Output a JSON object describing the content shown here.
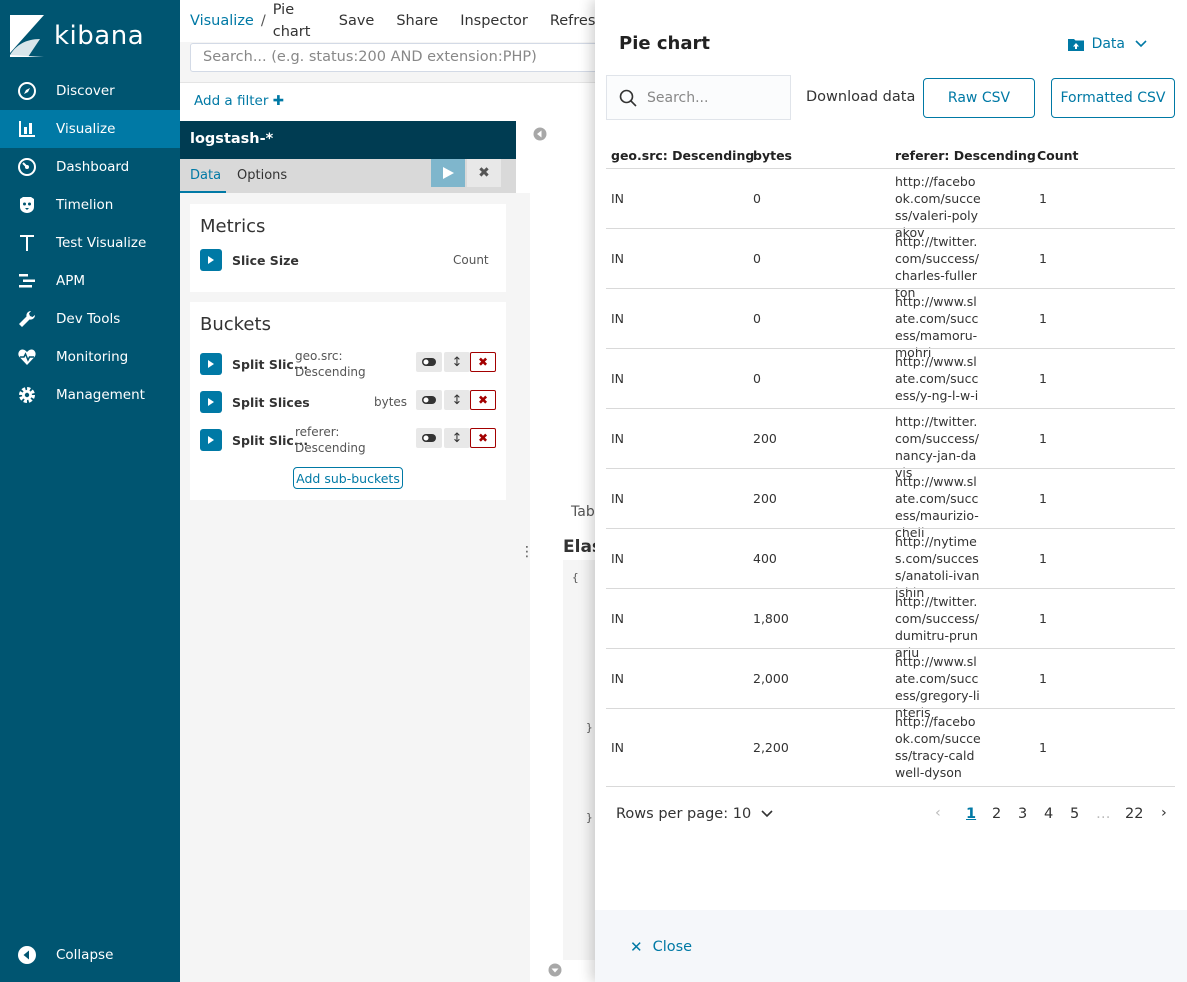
{
  "sidebar": {
    "logo_text": "kibana",
    "items": [
      {
        "label": "Discover",
        "icon": "compass-icon"
      },
      {
        "label": "Visualize",
        "icon": "bar-chart-icon"
      },
      {
        "label": "Dashboard",
        "icon": "dashboard-icon"
      },
      {
        "label": "Timelion",
        "icon": "timelion-icon"
      },
      {
        "label": "Test Visualize",
        "icon": "text-t-icon"
      },
      {
        "label": "APM",
        "icon": "apm-icon"
      },
      {
        "label": "Dev Tools",
        "icon": "wrench-icon"
      },
      {
        "label": "Monitoring",
        "icon": "heartbeat-icon"
      },
      {
        "label": "Management",
        "icon": "gear-icon"
      }
    ],
    "collapse_label": "Collapse"
  },
  "topbar": {
    "breadcrumb_root": "Visualize",
    "breadcrumb_sep": "/",
    "breadcrumb_current": "Pie chart",
    "menu": [
      "Save",
      "Share",
      "Inspector",
      "Refresh"
    ]
  },
  "query": {
    "placeholder": "Search... (e.g. status:200 AND extension:PHP)",
    "add_filter": "Add a filter"
  },
  "editor": {
    "index_pattern": "logstash-*",
    "tabs": [
      "Data",
      "Options"
    ],
    "metrics_title": "Metrics",
    "metric": {
      "label": "Slice Size",
      "desc": "Count"
    },
    "buckets_title": "Buckets",
    "buckets": [
      {
        "label": "Split Slic...",
        "desc": "geo.src: Descending"
      },
      {
        "label": "Split Slices",
        "desc": "bytes"
      },
      {
        "label": "Split Slic...",
        "desc": "referer: Descending"
      }
    ],
    "add_sub_buckets": "Add sub-buckets"
  },
  "viz": {
    "tab_fragment": "Tab",
    "heading_fragment": "Elas"
  },
  "inspector": {
    "title": "Pie chart",
    "view_label": "Data",
    "search_placeholder": "Search...",
    "download_label": "Download data",
    "raw_csv": "Raw CSV",
    "formatted_csv": "Formatted CSV",
    "columns": [
      "geo.src: Descending",
      "bytes",
      "referer: Descending",
      "Count"
    ],
    "rows": [
      {
        "geo": "IN",
        "bytes": "0",
        "referer": "http://facebook.com/success/valeri-polyakov",
        "count": "1"
      },
      {
        "geo": "IN",
        "bytes": "0",
        "referer": "http://twitter.com/success/charles-fullerton",
        "count": "1"
      },
      {
        "geo": "IN",
        "bytes": "0",
        "referer": "http://www.slate.com/success/mamoru-mohri",
        "count": "1"
      },
      {
        "geo": "IN",
        "bytes": "0",
        "referer": "http://www.slate.com/success/y-ng-l-w-i",
        "count": "1"
      },
      {
        "geo": "IN",
        "bytes": "200",
        "referer": "http://twitter.com/success/nancy-jan-davis",
        "count": "1"
      },
      {
        "geo": "IN",
        "bytes": "200",
        "referer": "http://www.slate.com/success/maurizio-cheli",
        "count": "1"
      },
      {
        "geo": "IN",
        "bytes": "400",
        "referer": "http://nytimes.com/success/anatoli-ivanishin",
        "count": "1"
      },
      {
        "geo": "IN",
        "bytes": "1,800",
        "referer": "http://twitter.com/success/dumitru-prunariu",
        "count": "1"
      },
      {
        "geo": "IN",
        "bytes": "2,000",
        "referer": "http://www.slate.com/success/gregory-linteris",
        "count": "1"
      },
      {
        "geo": "IN",
        "bytes": "2,200",
        "referer": "http://facebook.com/success/tracy-caldwell-dyson",
        "count": "1"
      }
    ],
    "rows_per_page": "Rows per page: 10",
    "pages": [
      "1",
      "2",
      "3",
      "4",
      "5",
      "…",
      "22"
    ],
    "active_page": "1",
    "close_label": "Close"
  },
  "colors": {
    "sidebar_bg": "#005571",
    "sidebar_active": "#0079a5",
    "accent": "#0079a5",
    "danger": "#a30000"
  }
}
